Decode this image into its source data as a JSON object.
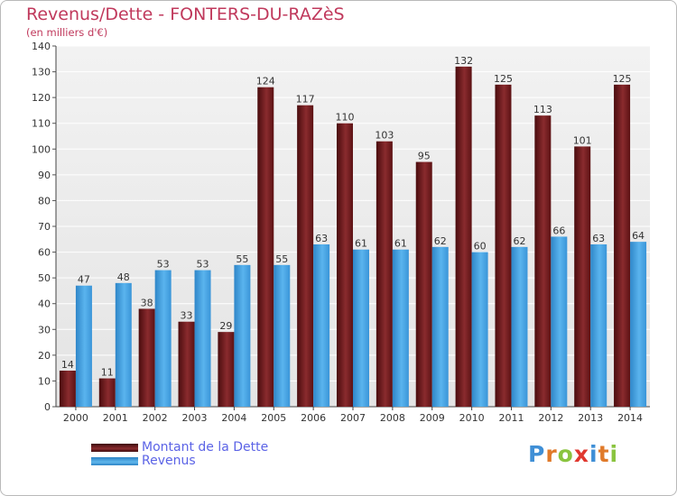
{
  "chart_data": {
    "type": "bar",
    "title": "Revenus/Dette - FONTERS-DU-RAZèS",
    "subtitle": "(en milliers d'€)",
    "categories": [
      "2000",
      "2001",
      "2002",
      "2003",
      "2004",
      "2005",
      "2006",
      "2007",
      "2008",
      "2009",
      "2010",
      "2011",
      "2012",
      "2013",
      "2014"
    ],
    "series": [
      {
        "name": "Montant de la Dette",
        "color": "#7a1f22",
        "values": [
          14,
          11,
          38,
          33,
          29,
          124,
          117,
          110,
          103,
          95,
          132,
          125,
          113,
          101,
          125
        ]
      },
      {
        "name": "Revenus",
        "color": "#3fa0e0",
        "values": [
          47,
          48,
          53,
          53,
          55,
          55,
          63,
          61,
          61,
          62,
          60,
          62,
          66,
          63,
          64
        ]
      }
    ],
    "ylim": [
      0,
      140
    ],
    "yticks": [
      0,
      10,
      20,
      30,
      40,
      50,
      60,
      70,
      80,
      90,
      100,
      110,
      120,
      130,
      140
    ],
    "grid": true,
    "legend": "bottom-left"
  },
  "logo": {
    "text": "Proxiti",
    "letters": [
      {
        "ch": "P",
        "color": "#3f8fd6"
      },
      {
        "ch": "r",
        "color": "#e07a2a"
      },
      {
        "ch": "o",
        "color": "#8ac43f"
      },
      {
        "ch": "x",
        "color": "#e0382f"
      },
      {
        "ch": "i",
        "color": "#3f8fd6"
      },
      {
        "ch": "t",
        "color": "#e07a2a"
      },
      {
        "ch": "i",
        "color": "#8ac43f"
      }
    ]
  }
}
